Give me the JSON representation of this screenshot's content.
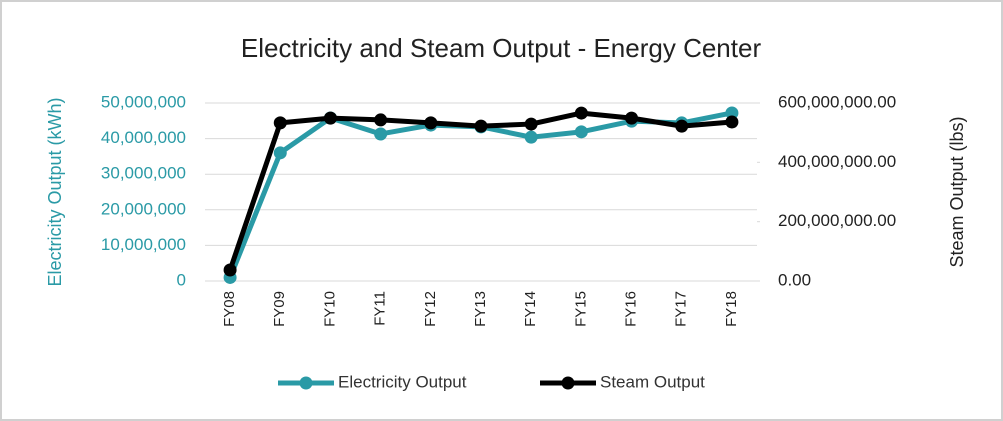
{
  "chart_data": {
    "type": "line",
    "title": "Electricity and Steam Output - Energy Center",
    "ylabel": "Electricity Output (kWh)",
    "y2label": "Steam Output (lbs)",
    "categories": [
      "FY08",
      "FY09",
      "FY10",
      "FY11",
      "FY12",
      "FY13",
      "FY14",
      "FY15",
      "FY16",
      "FY17",
      "FY18"
    ],
    "series": [
      {
        "name": "Electricity Output",
        "color": "#2a9aa6",
        "values": [
          1000000,
          36000000,
          45800000,
          41300000,
          43800000,
          43300000,
          40400000,
          41900000,
          44900000,
          44400000,
          47200000
        ]
      },
      {
        "name": "Steam Output",
        "color": "#000000",
        "axis": "y2",
        "values": [
          37000000,
          533000000,
          549000000,
          543000000,
          533000000,
          522000000,
          529000000,
          566000000,
          549000000,
          522000000,
          536000000
        ]
      }
    ],
    "ylim": [
      0,
      50000000
    ],
    "yticks": [
      0,
      {
        "value": 10000000,
        "label": "10,000,000"
      },
      {
        "value": 20000000,
        "label": "20,000,000"
      },
      {
        "value": 30000000,
        "label": "30,000,000"
      },
      {
        "value": 40000000,
        "label": "40,000,000"
      },
      {
        "value": 50000000,
        "label": "50,000,000"
      }
    ],
    "y2lim": [
      0,
      600000000
    ],
    "y2ticks": [
      {
        "value": 0,
        "label": "0.00"
      },
      {
        "value": 200000000,
        "label": "200,000,000.00"
      },
      {
        "value": 400000000,
        "label": "400,000,000.00"
      },
      {
        "value": 600000000,
        "label": "600,000,000.00"
      }
    ],
    "grid": true,
    "legend": "bottom"
  }
}
